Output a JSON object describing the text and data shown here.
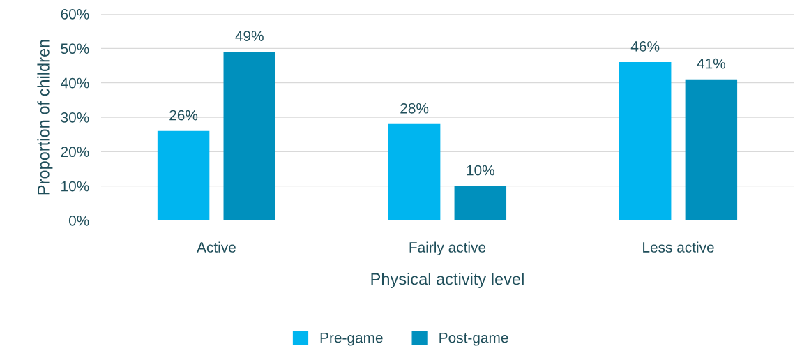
{
  "chart_data": {
    "type": "bar",
    "xlabel": "Physical activity level",
    "ylabel": "Proportion of children",
    "categories": [
      "Active",
      "Fairly active",
      "Less active"
    ],
    "series": [
      {
        "name": "Pre-game",
        "color": "#00b5ef",
        "values": [
          26,
          28,
          46
        ],
        "value_labels": [
          "26%",
          "28%",
          "46%"
        ]
      },
      {
        "name": "Post-game",
        "color": "#0090bd",
        "values": [
          49,
          10,
          41
        ],
        "value_labels": [
          "49%",
          "10%",
          "41%"
        ]
      }
    ],
    "ylim": [
      0,
      60
    ],
    "yticks": [
      {
        "value": 0,
        "label": "0%"
      },
      {
        "value": 10,
        "label": "10%"
      },
      {
        "value": 20,
        "label": "20%"
      },
      {
        "value": 30,
        "label": "30%"
      },
      {
        "value": 40,
        "label": "40%"
      },
      {
        "value": 50,
        "label": "50%"
      },
      {
        "value": 60,
        "label": "60%"
      }
    ],
    "grid": "y",
    "legend": "bottom"
  }
}
